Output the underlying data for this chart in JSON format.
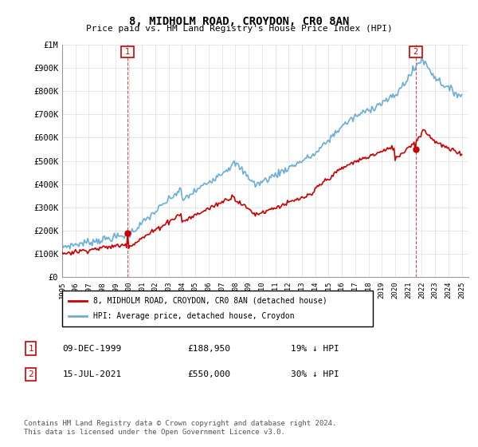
{
  "title": "8, MIDHOLM ROAD, CROYDON, CR0 8AN",
  "subtitle": "Price paid vs. HM Land Registry's House Price Index (HPI)",
  "x_start_year": 1995,
  "x_end_year": 2025,
  "ylim": [
    0,
    1000000
  ],
  "yticks": [
    0,
    100000,
    200000,
    300000,
    400000,
    500000,
    600000,
    700000,
    800000,
    900000,
    1000000
  ],
  "ytick_labels": [
    "£0",
    "£100K",
    "£200K",
    "£300K",
    "£400K",
    "£500K",
    "£600K",
    "£700K",
    "£800K",
    "£900K",
    "£1M"
  ],
  "hpi_color": "#6baed6",
  "price_color": "#cc0000",
  "sale1": {
    "year": 1999.92,
    "price": 188950,
    "label": "1"
  },
  "sale2": {
    "year": 2021.54,
    "price": 550000,
    "label": "2"
  },
  "legend_line1": "8, MIDHOLM ROAD, CROYDON, CR0 8AN (detached house)",
  "legend_line2": "HPI: Average price, detached house, Croydon",
  "table_row1": [
    "1",
    "09-DEC-1999",
    "£188,950",
    "19% ↓ HPI"
  ],
  "table_row2": [
    "2",
    "15-JUL-2021",
    "£550,000",
    "30% ↓ HPI"
  ],
  "footnote": "Contains HM Land Registry data © Crown copyright and database right 2024.\nThis data is licensed under the Open Government Licence v3.0.",
  "background_color": "#ffffff",
  "grid_color": "#dddddd"
}
